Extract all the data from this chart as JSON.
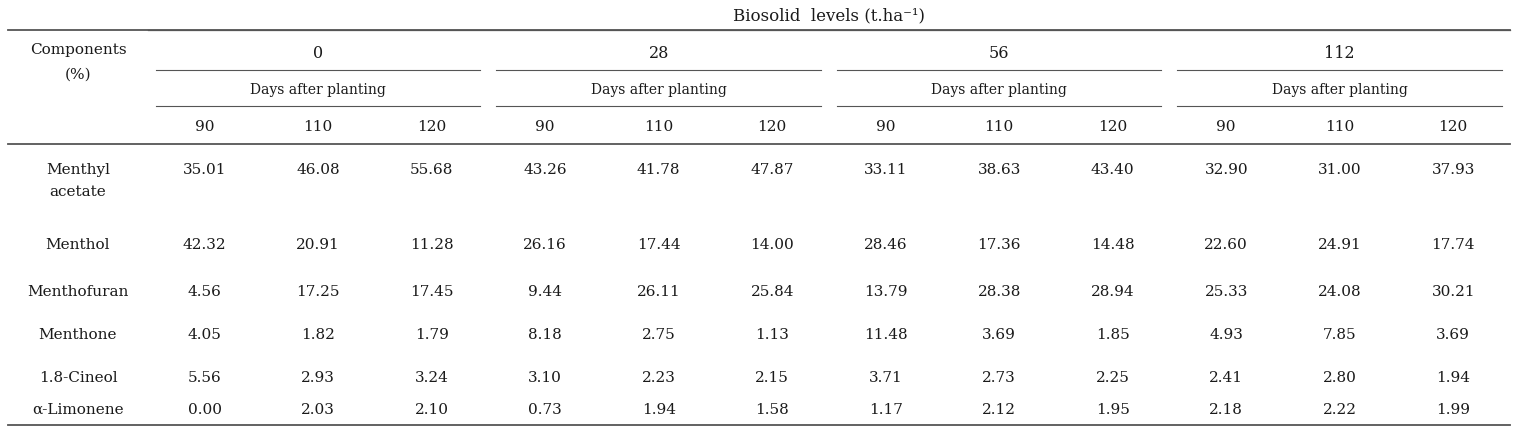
{
  "title": "Biosolid  levels (t.ha⁻¹)",
  "col_header_level1": [
    "0",
    "28",
    "56",
    "112"
  ],
  "col_header_level2": "Days after planting",
  "col_header_level3": [
    "90",
    "110",
    "120"
  ],
  "row_header_line1": "Components",
  "row_header_line2": "(%)",
  "components": [
    "Menthyl\nacetate",
    "Menthol",
    "Menthofuran",
    "Menthone",
    "1.8-Cineol",
    "α-Limonene"
  ],
  "data": [
    [
      35.01,
      46.08,
      55.68,
      43.26,
      41.78,
      47.87,
      33.11,
      38.63,
      43.4,
      32.9,
      31.0,
      37.93
    ],
    [
      42.32,
      20.91,
      11.28,
      26.16,
      17.44,
      14.0,
      28.46,
      17.36,
      14.48,
      22.6,
      24.91,
      17.74
    ],
    [
      4.56,
      17.25,
      17.45,
      9.44,
      26.11,
      25.84,
      13.79,
      28.38,
      28.94,
      25.33,
      24.08,
      30.21
    ],
    [
      4.05,
      1.82,
      1.79,
      8.18,
      2.75,
      1.13,
      11.48,
      3.69,
      1.85,
      4.93,
      7.85,
      3.69
    ],
    [
      5.56,
      2.93,
      3.24,
      3.1,
      2.23,
      2.15,
      3.71,
      2.73,
      2.25,
      2.41,
      2.8,
      1.94
    ],
    [
      0.0,
      2.03,
      2.1,
      0.73,
      1.94,
      1.58,
      1.17,
      2.12,
      1.95,
      2.18,
      2.22,
      1.99
    ]
  ],
  "bg_color": "#ffffff",
  "text_color": "#1a1a1a",
  "line_color": "#555555",
  "font_size": 11.0,
  "title_font_size": 12.0
}
